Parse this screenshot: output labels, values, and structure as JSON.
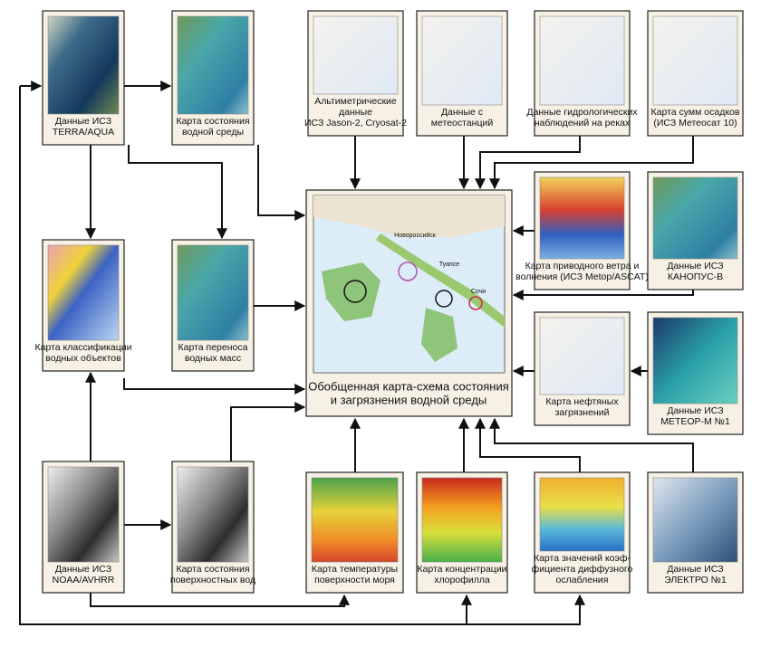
{
  "nodes": [
    {
      "label": [
        "Данные  ИСЗ",
        "TERRA/AQUA"
      ]
    },
    {
      "label": [
        "Карта состояния",
        "водной среды"
      ]
    },
    {
      "label": [
        "Альтиметрические",
        "данные",
        "ИСЗ Jason-2, Cryosat-2"
      ]
    },
    {
      "label": [
        "Данные с",
        "метеостанций"
      ]
    },
    {
      "label": [
        "Данные гидрологических",
        "наблюдений на реках"
      ]
    },
    {
      "label": [
        "Карта сумм осадков",
        "(ИСЗ Метеосат 10)"
      ]
    },
    {
      "label": [
        "Карта классификации",
        "водных объектов"
      ]
    },
    {
      "label": [
        "Карта переноса",
        "водных масс"
      ]
    },
    {
      "label": [
        "Карта приводного ветра и",
        "волнения (ИСЗ Metop/ASCAT)"
      ]
    },
    {
      "label": [
        "Данные ИСЗ",
        "КАНОПУС-В"
      ]
    },
    {
      "label": [
        "Карта нефтяных",
        "загрязнений"
      ]
    },
    {
      "label": [
        "Данные ИСЗ",
        "МЕТЕОР-М №1"
      ]
    },
    {
      "label": [
        "Данные  ИСЗ",
        "NOAA/AVHRR"
      ]
    },
    {
      "label": [
        "Карта состояния",
        "поверхностных вод"
      ]
    },
    {
      "label": [
        "Карта температуры",
        "поверхности моря"
      ]
    },
    {
      "label": [
        "Карта концентрации",
        "хлорофилла"
      ]
    },
    {
      "label": [
        "Карта значений  коэф-",
        "фициента  диффузного",
        "ослабления"
      ]
    },
    {
      "label": [
        "Данные ИСЗ",
        "ЭЛЕКТРО №1"
      ]
    }
  ],
  "center": {
    "label": [
      "Обобщенная карта-схема состояния",
      "и загрязнения водной среды"
    ],
    "map_labels": [
      "Новороссийск",
      "Туапсе",
      "Сочи"
    ]
  }
}
